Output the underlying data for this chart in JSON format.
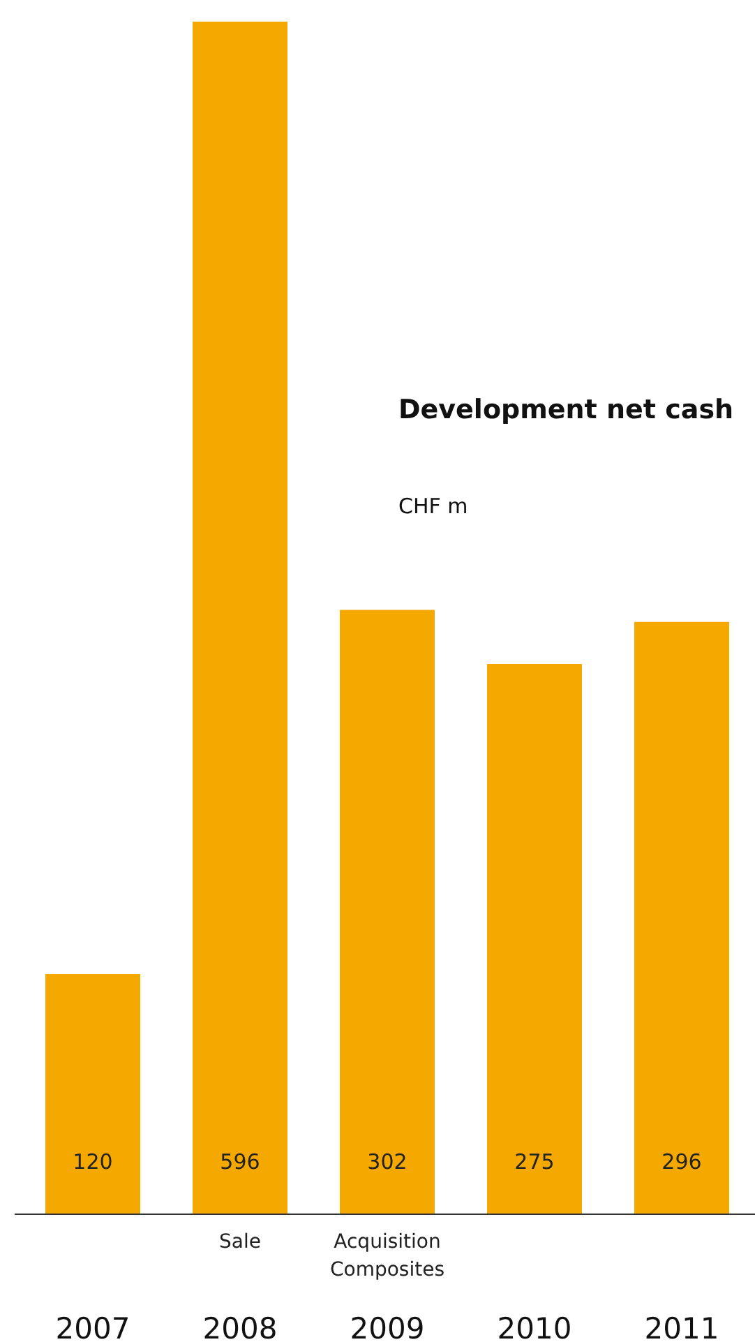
{
  "chart_data": {
    "type": "bar",
    "title": "Development net cash",
    "subtitle": "CHF m",
    "categories": [
      "2007",
      "2008",
      "2009",
      "2010",
      "2011"
    ],
    "values": [
      120,
      596,
      302,
      275,
      296
    ],
    "color": "#f5a800",
    "data_labels": true,
    "annotations": [
      "Sale",
      "Acquisition\nComposites"
    ]
  }
}
